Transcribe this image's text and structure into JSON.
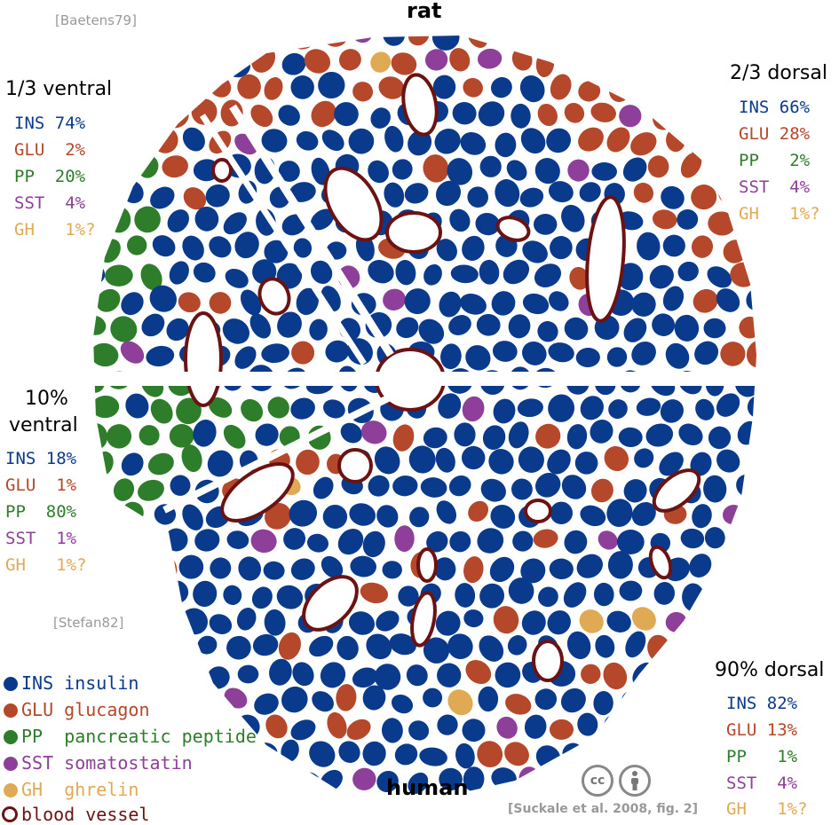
{
  "titles": {
    "top": "rat",
    "bottom": "human"
  },
  "citations": {
    "rat": "[Baetens79]",
    "human": "[Stefan82]"
  },
  "credit": "[Suckale et al. 2008, fig. 2]",
  "license_badges": [
    "cc",
    "by"
  ],
  "colors": {
    "INS": "#0a3a8c",
    "GLU": "#b5472a",
    "PP": "#2e7d2a",
    "SST": "#8e3f99",
    "GH": "#e0aa55",
    "vessel": "#6b1313"
  },
  "panels": {
    "rat_ventral": {
      "title": "1/3 ventral",
      "rows": [
        {
          "code": "INS",
          "pct": "74%"
        },
        {
          "code": "GLU",
          "pct": " 2%"
        },
        {
          "code": "PP",
          "pct": "20%"
        },
        {
          "code": "SST",
          "pct": " 4%"
        },
        {
          "code": "GH",
          "pct": " 1%?"
        }
      ]
    },
    "rat_dorsal": {
      "title": "2/3 dorsal",
      "rows": [
        {
          "code": "INS",
          "pct": "66%"
        },
        {
          "code": "GLU",
          "pct": "28%"
        },
        {
          "code": "PP",
          "pct": " 2%"
        },
        {
          "code": "SST",
          "pct": " 4%"
        },
        {
          "code": "GH",
          "pct": " 1%?"
        }
      ]
    },
    "human_ventral": {
      "title_line1": "10%",
      "title_line2": "ventral",
      "rows": [
        {
          "code": "INS",
          "pct": "18%"
        },
        {
          "code": "GLU",
          "pct": " 1%"
        },
        {
          "code": "PP",
          "pct": "80%"
        },
        {
          "code": "SST",
          "pct": " 1%"
        },
        {
          "code": "GH",
          "pct": " 1%?"
        }
      ]
    },
    "human_dorsal": {
      "title": "90% dorsal",
      "rows": [
        {
          "code": "INS",
          "pct": "82%"
        },
        {
          "code": "GLU",
          "pct": "13%"
        },
        {
          "code": "PP",
          "pct": " 1%"
        },
        {
          "code": "SST",
          "pct": " 4%"
        },
        {
          "code": "GH",
          "pct": " 1%?"
        }
      ]
    }
  },
  "legend": [
    {
      "code": "INS",
      "name": "insulin"
    },
    {
      "code": "GLU",
      "name": "glucagon"
    },
    {
      "code": "PP",
      "name": "pancreatic peptide"
    },
    {
      "code": "SST",
      "name": "somatostatin"
    },
    {
      "code": "GH",
      "name": "ghrelin"
    },
    {
      "code": "",
      "name": "blood vessel"
    }
  ]
}
